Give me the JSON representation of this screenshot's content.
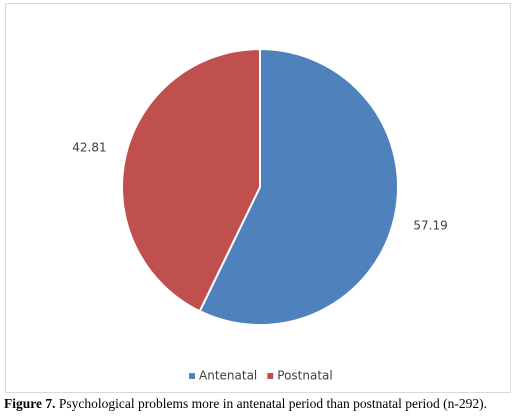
{
  "chart_data": {
    "type": "pie",
    "categories": [
      "Antenatal",
      "Postnatal"
    ],
    "values": [
      57.19,
      42.81
    ],
    "colors": [
      "#4f81bd",
      "#c0504d"
    ],
    "legend": "bottom"
  },
  "caption": {
    "label": "Figure 7.",
    "text": "Psychological problems more in antenatal period than postnatal period (n-292)."
  }
}
